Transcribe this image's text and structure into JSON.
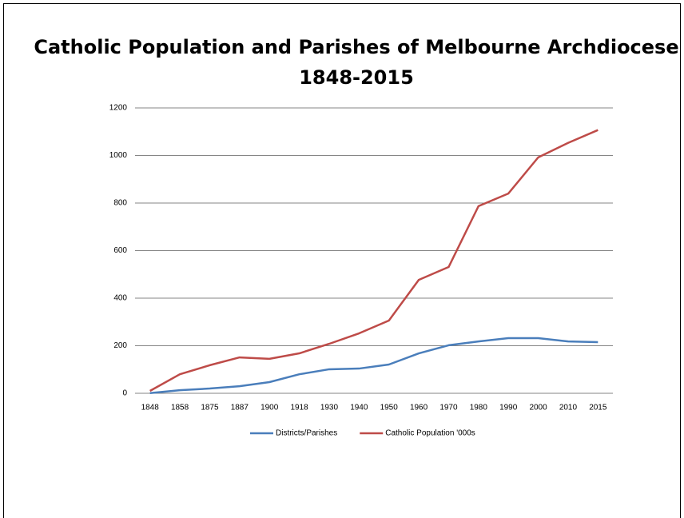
{
  "chart_data": {
    "type": "line",
    "title": [
      "Catholic Population and Parishes of Melbourne Archdiocese",
      "1848-2015"
    ],
    "categories": [
      "1848",
      "1858",
      "1875",
      "1887",
      "1900",
      "1918",
      "1930",
      "1940",
      "1950",
      "1960",
      "1970",
      "1980",
      "1990",
      "2000",
      "2010",
      "2015"
    ],
    "series": [
      {
        "name": "Districts/Parishes",
        "color": "#4a7ebb",
        "values": [
          1,
          13,
          20,
          30,
          47,
          80,
          101,
          104,
          121,
          168,
          202,
          218,
          232,
          232,
          218,
          215
        ]
      },
      {
        "name": "Catholic Population '000s",
        "color": "#be4b48",
        "values": [
          10,
          80,
          118,
          151,
          145,
          168,
          208,
          252,
          306,
          477,
          531,
          787,
          840,
          992,
          1053,
          1107
        ]
      }
    ],
    "ylim": [
      0,
      1200
    ],
    "yticks": [
      0,
      200,
      400,
      600,
      800,
      1000,
      1200
    ],
    "grid": true,
    "legend": "bottom"
  }
}
